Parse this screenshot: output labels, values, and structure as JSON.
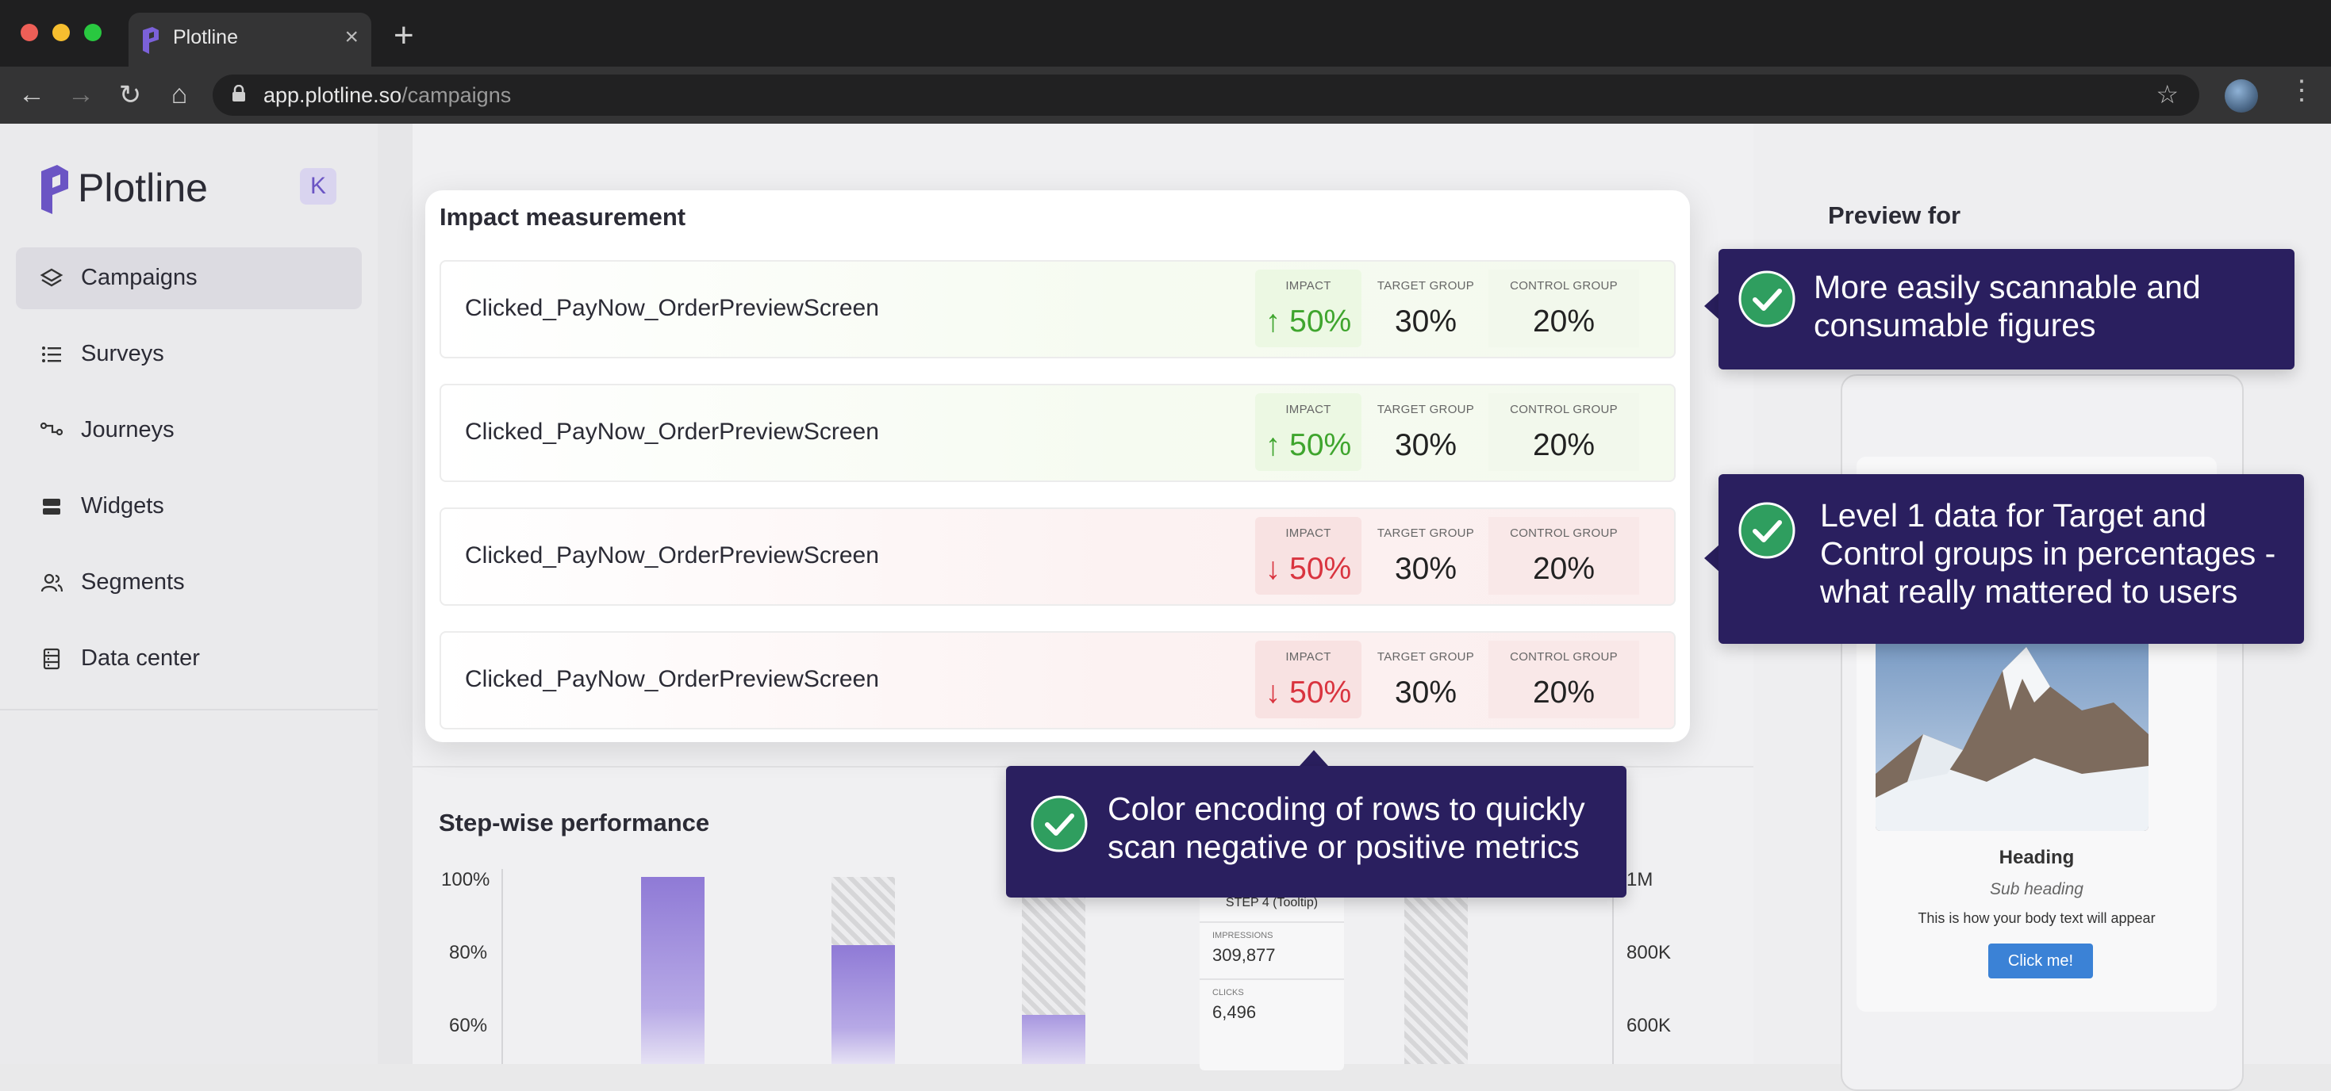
{
  "browser": {
    "tab_title": "Plotline",
    "url_host": "app.plotline.so",
    "url_path": "/campaigns",
    "new_tab": "+",
    "close": "×"
  },
  "sidebar": {
    "brand": "Plotline",
    "collapse_label": "K",
    "items": [
      {
        "label": "Campaigns",
        "icon": "layers-icon",
        "active": true
      },
      {
        "label": "Surveys",
        "icon": "list-icon"
      },
      {
        "label": "Journeys",
        "icon": "route-icon"
      },
      {
        "label": "Widgets",
        "icon": "widget-icon"
      },
      {
        "label": "Segments",
        "icon": "users-icon"
      },
      {
        "label": "Data center",
        "icon": "database-icon"
      }
    ]
  },
  "modal": {
    "title": "Impact measurement",
    "column_labels": {
      "impact": "IMPACT",
      "target": "TARGET GROUP",
      "control": "CONTROL GROUP"
    },
    "rows": [
      {
        "event": "Clicked_PayNow_OrderPreviewScreen",
        "direction": "up",
        "arrow": "↑",
        "impact": "50%",
        "target": "30%",
        "control": "20%"
      },
      {
        "event": "Clicked_PayNow_OrderPreviewScreen",
        "direction": "up",
        "arrow": "↑",
        "impact": "50%",
        "target": "30%",
        "control": "20%"
      },
      {
        "event": "Clicked_PayNow_OrderPreviewScreen",
        "direction": "down",
        "arrow": "↓",
        "impact": "50%",
        "target": "30%",
        "control": "20%"
      },
      {
        "event": "Clicked_PayNow_OrderPreviewScreen",
        "direction": "down",
        "arrow": "↓",
        "impact": "50%",
        "target": "30%",
        "control": "20%"
      }
    ]
  },
  "callouts": {
    "first": [
      "More easily scannable and",
      "consumable figures"
    ],
    "second": [
      "Level 1 data for Target and",
      "Control groups in percentages -",
      "what really mattered to users"
    ],
    "third": [
      "Color encoding of rows to quickly",
      "scan negative or positive metrics"
    ]
  },
  "preview": {
    "title": "Preview for",
    "heading": "Heading",
    "subheading": "Sub heading",
    "body": "This is how your body text will appear",
    "button": "Click me!"
  },
  "stepwise": {
    "title": "Step-wise performance",
    "y_left": [
      "100%",
      "80%",
      "60%"
    ],
    "y_right": [
      "1M",
      "800K",
      "600K"
    ],
    "tooltip": {
      "title": "STEP 4 (Tooltip)",
      "impressions_label": "IMPRESSIONS",
      "impressions": "309,877",
      "clicks_label": "CLICKS",
      "clicks": "6,496"
    }
  },
  "colors": {
    "positive": "#3fa52e",
    "negative": "#d9343f",
    "callout": "#2a1f5f",
    "brand": "#6b55c4"
  }
}
